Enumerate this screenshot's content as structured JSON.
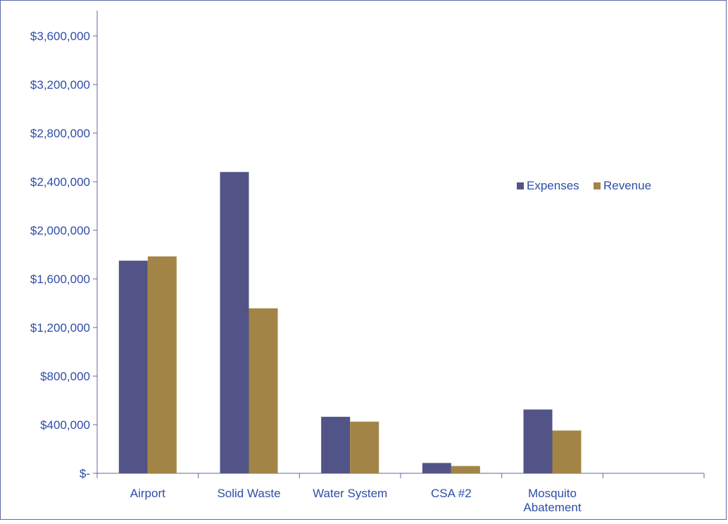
{
  "colors": {
    "expenses": "#525487",
    "revenue": "#a28546",
    "axis": "#5b6aa8",
    "text": "#2e4ea8"
  },
  "chart_data": {
    "type": "bar",
    "categories": [
      [
        "Airport"
      ],
      [
        "Solid Waste"
      ],
      [
        "Water System"
      ],
      [
        "CSA #2"
      ],
      [
        "Mosquito",
        "Abatement"
      ],
      [
        ""
      ]
    ],
    "series": [
      {
        "name": "Expenses",
        "values": [
          1750000,
          2480000,
          465000,
          85000,
          525000,
          null
        ]
      },
      {
        "name": "Revenue",
        "values": [
          1785000,
          1358000,
          425000,
          60000,
          352000,
          null
        ]
      }
    ],
    "y_ticks": [
      0,
      400000,
      800000,
      1200000,
      1600000,
      2000000,
      2400000,
      2800000,
      3200000,
      3600000
    ],
    "y_tick_labels": [
      "$-",
      "$400,000",
      "$800,000",
      "$1,200,000",
      "$1,600,000",
      "$2,000,000",
      "$2,400,000",
      "$2,800,000",
      "$3,200,000",
      "$3,600,000"
    ],
    "ylim": [
      0,
      3800000
    ],
    "legend_position": "right",
    "grid": false,
    "title": "",
    "xlabel": "",
    "ylabel": ""
  }
}
